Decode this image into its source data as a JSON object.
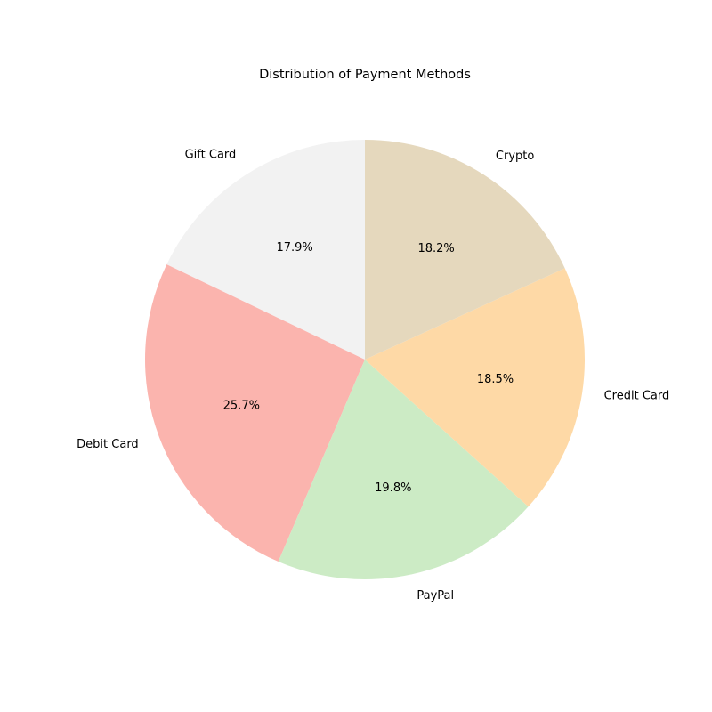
{
  "chart_data": {
    "type": "pie",
    "title": "Distribution of Payment Methods",
    "categories": [
      "Gift Card",
      "Debit Card",
      "PayPal",
      "Credit Card",
      "Crypto"
    ],
    "values": [
      17.9,
      25.7,
      19.8,
      18.5,
      18.2
    ],
    "value_labels": [
      "17.9%",
      "25.7%",
      "19.8%",
      "18.5%",
      "18.2%"
    ],
    "colors": [
      "#f2f2f2",
      "#fbb4ae",
      "#ccebc5",
      "#fed9a6",
      "#e5d8bd"
    ],
    "start_angle_deg": 90,
    "direction": "counterclockwise",
    "legend": "none"
  }
}
